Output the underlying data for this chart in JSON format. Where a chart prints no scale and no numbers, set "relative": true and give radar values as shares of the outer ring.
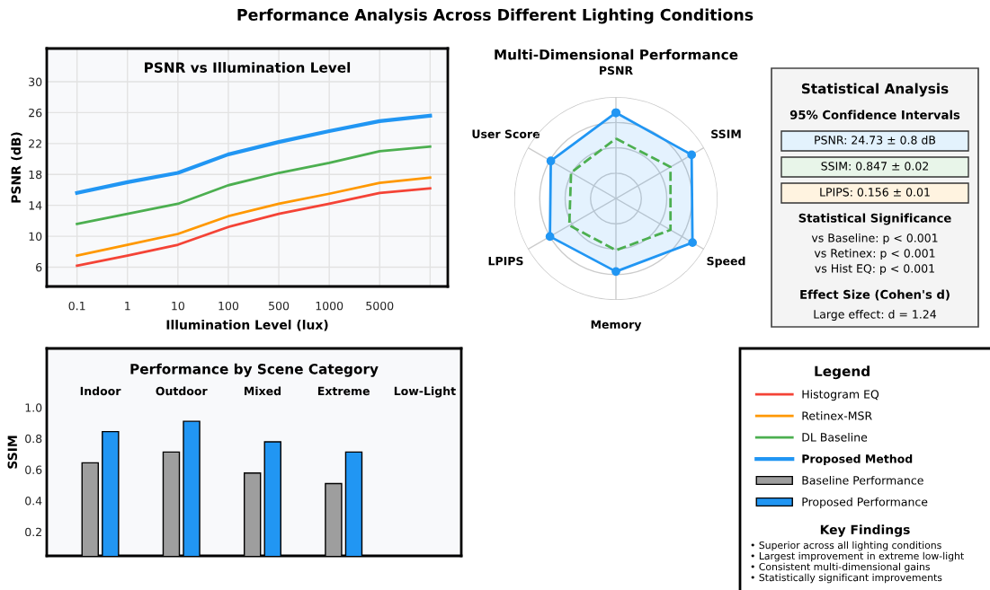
{
  "chart_data": [
    {
      "type": "other",
      "title": "Performance Analysis Across Different Lighting Conditions"
    },
    {
      "type": "line",
      "title": "PSNR vs Illumination Level",
      "xlabel": "Illumination Level (lux)",
      "ylabel": "PSNR (dB)",
      "categories": [
        "0.1",
        "1",
        "10",
        "100",
        "500",
        "1000",
        "5000",
        null
      ],
      "ylim": [
        3.5,
        34.3
      ],
      "yticks": [
        6,
        10,
        14,
        18,
        22,
        26,
        30
      ],
      "grid": true,
      "legend": "right",
      "legend_title": "Legend",
      "series": [
        {
          "name": "Histogram EQ",
          "color": "#f44336",
          "values": [
            6.2,
            7.5,
            8.9,
            11.2,
            12.9,
            14.2,
            15.6,
            16.2
          ]
        },
        {
          "name": "Retinex-MSR",
          "color": "#ff9800",
          "values": [
            7.5,
            8.9,
            10.3,
            12.6,
            14.2,
            15.5,
            16.9,
            17.6
          ]
        },
        {
          "name": "DL Baseline",
          "color": "#4caf50",
          "values": [
            11.6,
            12.9,
            14.2,
            16.6,
            18.2,
            19.5,
            21.0,
            21.6
          ]
        },
        {
          "name": "Proposed Method",
          "color": "#2196f3",
          "values": [
            15.6,
            17.0,
            18.2,
            20.6,
            22.2,
            23.6,
            24.9,
            25.6
          ]
        }
      ]
    },
    {
      "type": "radar",
      "title": "Multi-Dimensional Performance",
      "categories": [
        "PSNR",
        "SSIM",
        "Speed",
        "Memory",
        "LPIPS",
        "User Score"
      ],
      "relative": true,
      "grid": true,
      "series": [
        {
          "color": "#2196f3",
          "marker": "circle",
          "values": [
            0.845,
            0.86,
            0.87,
            0.72,
            0.75,
            0.74
          ]
        },
        {
          "color": "#4caf50",
          "line_style": "dashed",
          "values": [
            0.59,
            0.62,
            0.62,
            0.51,
            0.53,
            0.51
          ]
        }
      ]
    },
    {
      "type": "other",
      "title": "Statistical Analysis",
      "subtitle": "95% Confidence Intervals",
      "annotations": [
        "PSNR: 24.73 ± 0.8 dB",
        "SSIM: 0.847 ± 0.02",
        "LPIPS: 0.156 ± 0.01",
        "Statistical Significance",
        "vs Baseline: p < 0.001",
        "vs Retinex: p < 0.001",
        "vs Hist EQ: p < 0.001",
        "Effect Size (Cohen's d)",
        "Large effect: d = 1.24"
      ]
    },
    {
      "type": "bar",
      "title": "Performance by Scene Category",
      "ylabel": "SSIM",
      "categories": [
        "Indoor",
        "Outdoor",
        "Mixed",
        "Extreme",
        "Low-Light"
      ],
      "ylim": [
        0.045,
        1.38
      ],
      "yticks": [
        0.2,
        0.4,
        0.6,
        0.8,
        {
          "value": 1,
          "label": "1.0"
        }
      ],
      "legend": "right",
      "series": [
        {
          "name": "Baseline Performance",
          "color": "#9e9e9e",
          "values": [
            0.644,
            0.713,
            0.578,
            0.51,
            null
          ]
        },
        {
          "name": "Proposed Performance",
          "color": "#2196f3",
          "values": [
            0.845,
            0.911,
            0.779,
            0.713,
            null
          ]
        }
      ]
    },
    {
      "type": "other",
      "title": "Key Findings",
      "annotations": [
        "• Superior across all lighting conditions",
        "• Largest improvement in extreme low-light",
        "• Consistent multi-dimensional gains",
        "• Statistically significant improvements"
      ]
    }
  ]
}
